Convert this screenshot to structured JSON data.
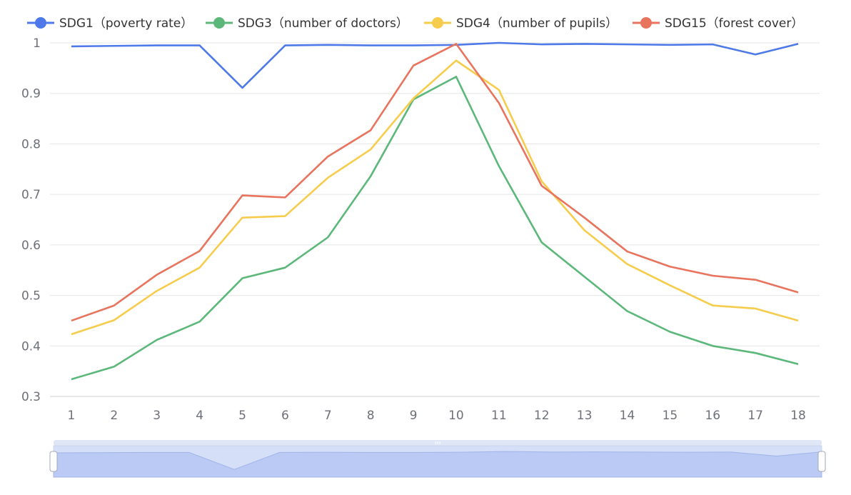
{
  "chart_data": {
    "type": "line",
    "x": [
      "1",
      "2",
      "3",
      "4",
      "5",
      "6",
      "7",
      "8",
      "9",
      "10",
      "11",
      "12",
      "13",
      "14",
      "15",
      "16",
      "17",
      "18"
    ],
    "ylim": [
      0.3,
      1
    ],
    "yticks": [
      "0.3",
      "0.4",
      "0.5",
      "0.6",
      "0.7",
      "0.8",
      "0.9",
      "1"
    ],
    "grid": true,
    "legend_position": "top",
    "series": [
      {
        "name": "SDG1（poverty rate）",
        "color": "#4e79e8",
        "values": [
          0.993,
          0.994,
          0.995,
          0.995,
          0.911,
          0.995,
          0.996,
          0.995,
          0.995,
          0.996,
          1.0,
          0.997,
          0.998,
          0.997,
          0.996,
          0.997,
          0.977,
          0.998
        ]
      },
      {
        "name": "SDG3（number of doctors）",
        "color": "#5cb87a",
        "values": [
          0.334,
          0.359,
          0.412,
          0.448,
          0.534,
          0.555,
          0.615,
          0.736,
          0.888,
          0.933,
          0.756,
          0.605,
          0.537,
          0.469,
          0.428,
          0.4,
          0.386,
          0.364
        ]
      },
      {
        "name": "SDG4（number of pupils）",
        "color": "#f5cc4b",
        "values": [
          0.423,
          0.451,
          0.509,
          0.555,
          0.654,
          0.657,
          0.733,
          0.789,
          0.89,
          0.965,
          0.907,
          0.726,
          0.629,
          0.562,
          0.52,
          0.48,
          0.474,
          0.45
        ]
      },
      {
        "name": "SDG15（forest cover）",
        "color": "#e8745e",
        "values": [
          0.45,
          0.48,
          0.541,
          0.588,
          0.698,
          0.694,
          0.775,
          0.827,
          0.955,
          0.998,
          0.881,
          0.717,
          0.654,
          0.587,
          0.557,
          0.539,
          0.531,
          0.506
        ]
      }
    ],
    "datazoom": {
      "start": 0,
      "end": 100
    }
  }
}
